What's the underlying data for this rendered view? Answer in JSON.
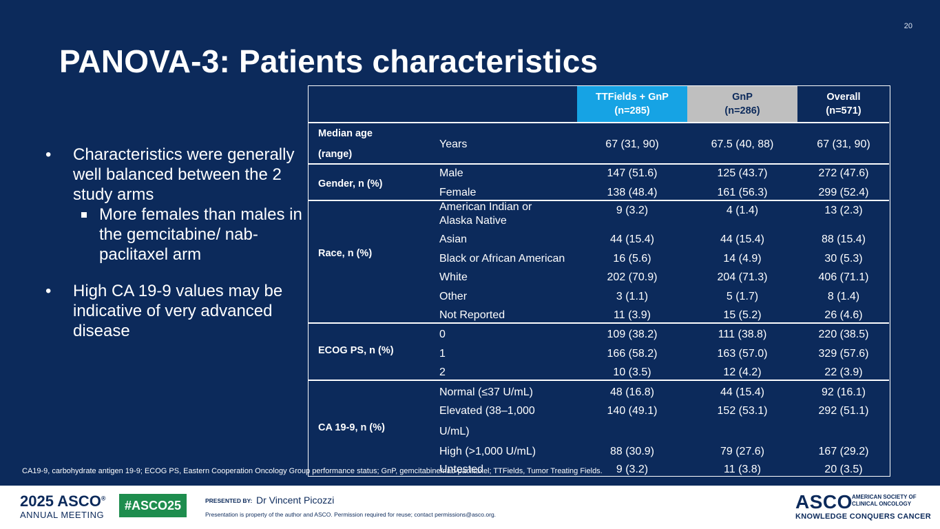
{
  "slide_number": "20",
  "title": "PANOVA-3: Patients characteristics",
  "bullets": {
    "b1": "Characteristics were generally well balanced between the 2 study arms",
    "b1_sub": "More females than males in the gemcitabine/ nab-paclitaxel arm",
    "b2": "High CA 19-9 values may be indicative of very advanced disease",
    "marker": "•"
  },
  "table": {
    "headers": {
      "ttfields": "TTFields + GnP",
      "ttfields_n": "(n=285)",
      "gnp": "GnP",
      "gnp_n": "(n=286)",
      "overall": "Overall",
      "overall_n": "(n=571)"
    },
    "median_age": {
      "label1": "Median age",
      "label2": "(range)",
      "sub": "Years",
      "v1": "67 (31, 90)",
      "v2": "67.5 (40, 88)",
      "v3": "67 (31, 90)"
    },
    "gender": {
      "label": "Gender, n (%)",
      "rows": [
        {
          "sub": "Male",
          "v1": "147 (51.6)",
          "v2": "125 (43.7)",
          "v3": "272 (47.6)"
        },
        {
          "sub": "Female",
          "v1": "138 (48.4)",
          "v2": "161 (56.3)",
          "v3": "299 (52.4)"
        }
      ]
    },
    "race": {
      "label": "Race, n (%)",
      "rows": [
        {
          "sub1": "American Indian or",
          "sub2": "Alaska Native",
          "v1": "9 (3.2)",
          "v2": "4 (1.4)",
          "v3": "13 (2.3)"
        },
        {
          "sub": "Asian",
          "v1": "44 (15.4)",
          "v2": "44 (15.4)",
          "v3": "88 (15.4)"
        },
        {
          "sub": "Black or African American",
          "v1": "16 (5.6)",
          "v2": "14 (4.9)",
          "v3": "30 (5.3)"
        },
        {
          "sub": "White",
          "v1": "202 (70.9)",
          "v2": "204 (71.3)",
          "v3": "406 (71.1)"
        },
        {
          "sub": "Other",
          "v1": "3 (1.1)",
          "v2": "5 (1.7)",
          "v3": "8 (1.4)"
        },
        {
          "sub": "Not Reported",
          "v1": "11 (3.9)",
          "v2": "15 (5.2)",
          "v3": "26 (4.6)"
        }
      ]
    },
    "ecog": {
      "label": "ECOG PS, n (%)",
      "rows": [
        {
          "sub": "0",
          "v1": "109 (38.2)",
          "v2": "111 (38.8)",
          "v3": "220 (38.5)"
        },
        {
          "sub": "1",
          "v1": "166 (58.2)",
          "v2": "163 (57.0)",
          "v3": "329 (57.6)"
        },
        {
          "sub": "2",
          "v1": "10 (3.5)",
          "v2": "12 (4.2)",
          "v3": "22 (3.9)"
        }
      ]
    },
    "ca199": {
      "label": "CA 19-9, n (%)",
      "rows": [
        {
          "sub": "Normal (≤37 U/mL)",
          "v1": "48 (16.8)",
          "v2": "44 (15.4)",
          "v3": "92 (16.1)"
        },
        {
          "sub1": "Elevated (38–1,000",
          "sub2": "U/mL)",
          "v1": "140 (49.1)",
          "v2": "152 (53.1)",
          "v3": "292 (51.1)"
        },
        {
          "sub": "High (>1,000 U/mL)",
          "v1": "88 (30.9)",
          "v2": "79 (27.6)",
          "v3": "167 (29.2)"
        },
        {
          "sub": "Untested",
          "v1": "9 (3.2)",
          "v2": "11 (3.8)",
          "v3": "20 (3.5)"
        }
      ]
    }
  },
  "footnote": "CA19-9, carbohydrate antigen 19-9; ECOG PS, Eastern Cooperation Oncology Group performance status; GnP, gemcitabine/nab-paclitaxel; TTFields, Tumor Treating Fields.",
  "footer": {
    "meeting_year": "2025",
    "meeting_org": "ASCO",
    "meeting_name": "ANNUAL MEETING",
    "hashtag": "#ASCO25",
    "presented_by_label": "PRESENTED BY:",
    "presenter": "Dr Vincent Picozzi",
    "permission": "Presentation is property of the author and ASCO. Permission required for reuse; contact permissions@asco.org.",
    "brand": "ASCO",
    "society_line1": "AMERICAN SOCIETY OF",
    "society_line2": "CLINICAL ONCOLOGY",
    "tagline": "KNOWLEDGE CONQUERS CANCER"
  },
  "colors": {
    "background": "#0c2a5b",
    "ttfields_header": "#16a3e4",
    "gnp_header": "#bfbfbf",
    "hashtag_green": "#1e8d4e"
  }
}
